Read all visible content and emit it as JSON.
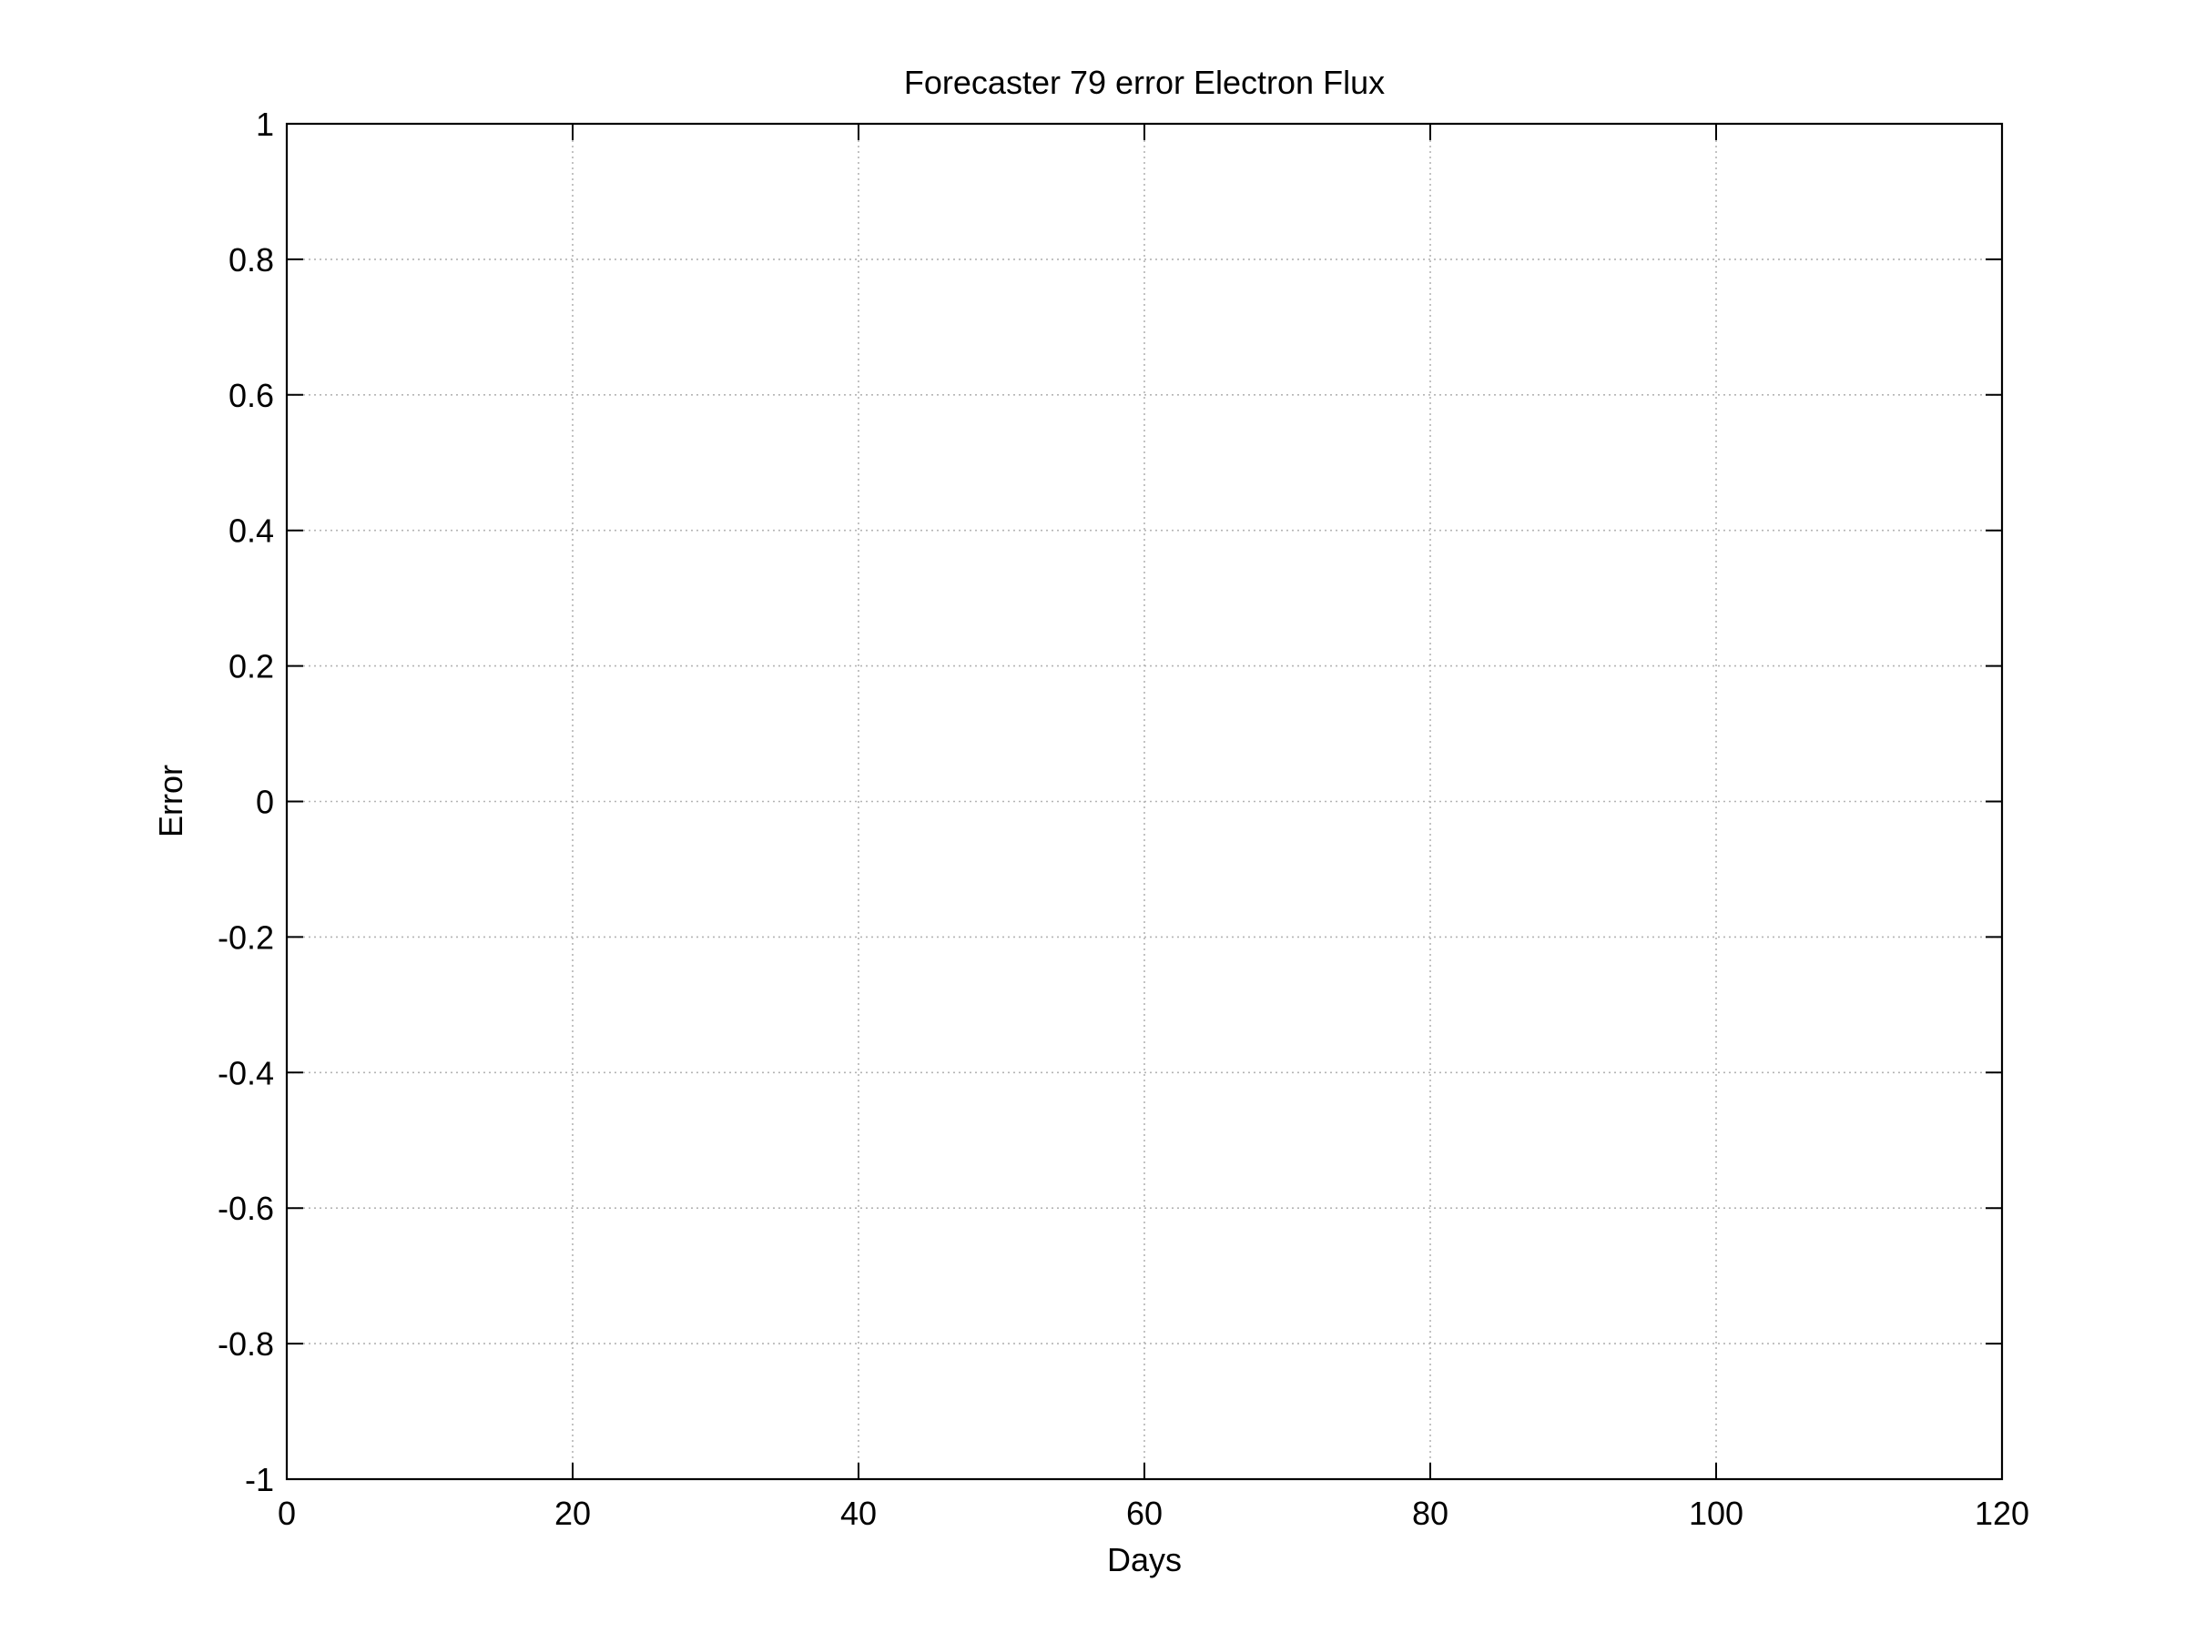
{
  "chart_data": {
    "type": "line",
    "title": "Forecaster 79 error  Electron Flux",
    "xlabel": "Days",
    "ylabel": "Error",
    "xlim": [
      0,
      120
    ],
    "ylim": [
      -1,
      1
    ],
    "xticks": [
      0,
      20,
      40,
      60,
      80,
      100,
      120
    ],
    "yticks": [
      -1,
      -0.8,
      -0.6,
      -0.4,
      -0.2,
      0,
      0.2,
      0.4,
      0.6,
      0.8,
      1
    ],
    "xtick_labels": [
      "0",
      "20",
      "40",
      "60",
      "80",
      "100",
      "120"
    ],
    "ytick_labels": [
      "-1",
      "-0.8",
      "-0.6",
      "-0.4",
      "-0.2",
      "0",
      "0.2",
      "0.4",
      "0.6",
      "0.8",
      "1"
    ],
    "grid": true,
    "series": []
  }
}
